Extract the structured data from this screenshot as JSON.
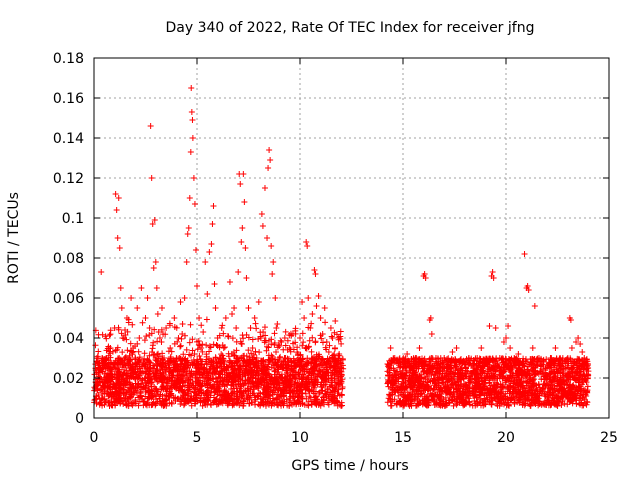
{
  "chart_data": {
    "type": "scatter",
    "title": "Day 340 of 2022, Rate Of TEC Index for receiver jfng",
    "xlabel": "GPS time / hours",
    "ylabel": "ROTI / TECUs",
    "xlim": [
      0,
      25
    ],
    "ylim": [
      0,
      0.18
    ],
    "xticks": [
      0,
      5,
      10,
      15,
      20,
      25
    ],
    "xtick_labels": [
      "0",
      "5",
      "10",
      "15",
      "20",
      "25"
    ],
    "yticks": [
      0,
      0.02,
      0.04,
      0.06,
      0.08,
      0.1,
      0.12,
      0.14,
      0.16,
      0.18
    ],
    "ytick_labels": [
      "0",
      "0.02",
      "0.04",
      "0.06",
      "0.08",
      "0.1",
      "0.12",
      "0.14",
      "0.16",
      "0.18"
    ],
    "grid": true,
    "marker": "+",
    "color": "#ff0000",
    "data_gap_hours": [
      12.1,
      14.2
    ],
    "series": [
      {
        "name": "ROTI",
        "points": [
          [
            0.1,
            0.016
          ],
          [
            0.2,
            0.022
          ],
          [
            0.3,
            0.014
          ],
          [
            0.35,
            0.073
          ],
          [
            0.4,
            0.025
          ],
          [
            0.5,
            0.018
          ],
          [
            0.6,
            0.03
          ],
          [
            0.7,
            0.012
          ],
          [
            0.8,
            0.035
          ],
          [
            0.9,
            0.02
          ],
          [
            1.0,
            0.045
          ],
          [
            1.05,
            0.112
          ],
          [
            1.1,
            0.104
          ],
          [
            1.15,
            0.09
          ],
          [
            1.2,
            0.11
          ],
          [
            1.25,
            0.085
          ],
          [
            1.3,
            0.065
          ],
          [
            1.35,
            0.055
          ],
          [
            1.4,
            0.04
          ],
          [
            1.5,
            0.03
          ],
          [
            1.6,
            0.05
          ],
          [
            1.7,
            0.025
          ],
          [
            1.8,
            0.06
          ],
          [
            1.9,
            0.035
          ],
          [
            2.0,
            0.02
          ],
          [
            2.1,
            0.055
          ],
          [
            2.2,
            0.04
          ],
          [
            2.3,
            0.065
          ],
          [
            2.4,
            0.028
          ],
          [
            2.5,
            0.05
          ],
          [
            2.6,
            0.06
          ],
          [
            2.7,
            0.045
          ],
          [
            2.75,
            0.146
          ],
          [
            2.8,
            0.12
          ],
          [
            2.85,
            0.097
          ],
          [
            2.9,
            0.075
          ],
          [
            2.95,
            0.099
          ],
          [
            3.0,
            0.078
          ],
          [
            3.05,
            0.065
          ],
          [
            3.1,
            0.052
          ],
          [
            3.2,
            0.04
          ],
          [
            3.3,
            0.055
          ],
          [
            3.4,
            0.03
          ],
          [
            3.5,
            0.045
          ],
          [
            3.6,
            0.025
          ],
          [
            3.7,
            0.035
          ],
          [
            3.8,
            0.02
          ],
          [
            3.9,
            0.05
          ],
          [
            4.0,
            0.03
          ],
          [
            4.1,
            0.04
          ],
          [
            4.2,
            0.058
          ],
          [
            4.3,
            0.047
          ],
          [
            4.4,
            0.06
          ],
          [
            4.5,
            0.078
          ],
          [
            4.55,
            0.092
          ],
          [
            4.6,
            0.095
          ],
          [
            4.65,
            0.11
          ],
          [
            4.7,
            0.133
          ],
          [
            4.72,
            0.165
          ],
          [
            4.75,
            0.153
          ],
          [
            4.78,
            0.149
          ],
          [
            4.8,
            0.14
          ],
          [
            4.85,
            0.12
          ],
          [
            4.9,
            0.107
          ],
          [
            4.95,
            0.084
          ],
          [
            5.0,
            0.066
          ],
          [
            5.1,
            0.05
          ],
          [
            5.2,
            0.035
          ],
          [
            5.3,
            0.043
          ],
          [
            5.4,
            0.078
          ],
          [
            5.5,
            0.062
          ],
          [
            5.6,
            0.083
          ],
          [
            5.7,
            0.087
          ],
          [
            5.75,
            0.097
          ],
          [
            5.8,
            0.106
          ],
          [
            5.85,
            0.067
          ],
          [
            5.9,
            0.055
          ],
          [
            6.0,
            0.04
          ],
          [
            6.1,
            0.03
          ],
          [
            6.2,
            0.045
          ],
          [
            6.3,
            0.035
          ],
          [
            6.4,
            0.05
          ],
          [
            6.5,
            0.041
          ],
          [
            6.6,
            0.068
          ],
          [
            6.7,
            0.052
          ],
          [
            6.8,
            0.055
          ],
          [
            6.9,
            0.045
          ],
          [
            7.0,
            0.073
          ],
          [
            7.05,
            0.122
          ],
          [
            7.1,
            0.117
          ],
          [
            7.15,
            0.088
          ],
          [
            7.2,
            0.095
          ],
          [
            7.25,
            0.122
          ],
          [
            7.3,
            0.108
          ],
          [
            7.35,
            0.085
          ],
          [
            7.4,
            0.07
          ],
          [
            7.5,
            0.055
          ],
          [
            7.6,
            0.045
          ],
          [
            7.7,
            0.035
          ],
          [
            7.8,
            0.05
          ],
          [
            7.9,
            0.03
          ],
          [
            8.0,
            0.058
          ],
          [
            8.1,
            0.04
          ],
          [
            8.15,
            0.102
          ],
          [
            8.2,
            0.096
          ],
          [
            8.3,
            0.115
          ],
          [
            8.4,
            0.09
          ],
          [
            8.45,
            0.125
          ],
          [
            8.5,
            0.134
          ],
          [
            8.55,
            0.129
          ],
          [
            8.6,
            0.086
          ],
          [
            8.65,
            0.072
          ],
          [
            8.7,
            0.078
          ],
          [
            8.8,
            0.06
          ],
          [
            8.9,
            0.047
          ],
          [
            9.0,
            0.03
          ],
          [
            9.1,
            0.038
          ],
          [
            9.2,
            0.025
          ],
          [
            9.3,
            0.03
          ],
          [
            9.4,
            0.022
          ],
          [
            9.5,
            0.035
          ],
          [
            9.6,
            0.018
          ],
          [
            9.7,
            0.028
          ],
          [
            9.8,
            0.02
          ],
          [
            9.9,
            0.032
          ],
          [
            10.0,
            0.04
          ],
          [
            10.1,
            0.058
          ],
          [
            10.2,
            0.05
          ],
          [
            10.3,
            0.088
          ],
          [
            10.35,
            0.086
          ],
          [
            10.4,
            0.06
          ],
          [
            10.5,
            0.045
          ],
          [
            10.6,
            0.052
          ],
          [
            10.7,
            0.074
          ],
          [
            10.75,
            0.072
          ],
          [
            10.8,
            0.056
          ],
          [
            10.9,
            0.061
          ],
          [
            11.0,
            0.05
          ],
          [
            11.1,
            0.042
          ],
          [
            11.2,
            0.055
          ],
          [
            11.3,
            0.038
          ],
          [
            11.4,
            0.033
          ],
          [
            11.5,
            0.045
          ],
          [
            11.6,
            0.03
          ],
          [
            11.7,
            0.035
          ],
          [
            11.8,
            0.028
          ],
          [
            11.9,
            0.032
          ],
          [
            12.0,
            0.025
          ],
          [
            14.4,
            0.035
          ],
          [
            14.6,
            0.03
          ],
          [
            14.8,
            0.028
          ],
          [
            15.0,
            0.022
          ],
          [
            15.2,
            0.032
          ],
          [
            15.4,
            0.025
          ],
          [
            15.6,
            0.03
          ],
          [
            15.8,
            0.035
          ],
          [
            16.0,
            0.071
          ],
          [
            16.05,
            0.072
          ],
          [
            16.1,
            0.07
          ],
          [
            16.3,
            0.049
          ],
          [
            16.35,
            0.05
          ],
          [
            16.4,
            0.042
          ],
          [
            16.6,
            0.03
          ],
          [
            16.8,
            0.025
          ],
          [
            17.0,
            0.03
          ],
          [
            17.2,
            0.028
          ],
          [
            17.4,
            0.033
          ],
          [
            17.6,
            0.035
          ],
          [
            17.8,
            0.028
          ],
          [
            18.0,
            0.022
          ],
          [
            18.2,
            0.03
          ],
          [
            18.4,
            0.025
          ],
          [
            18.6,
            0.03
          ],
          [
            18.8,
            0.035
          ],
          [
            19.0,
            0.028
          ],
          [
            19.2,
            0.046
          ],
          [
            19.3,
            0.071
          ],
          [
            19.35,
            0.073
          ],
          [
            19.4,
            0.07
          ],
          [
            19.5,
            0.045
          ],
          [
            19.7,
            0.03
          ],
          [
            19.9,
            0.038
          ],
          [
            20.0,
            0.04
          ],
          [
            20.1,
            0.046
          ],
          [
            20.2,
            0.035
          ],
          [
            20.4,
            0.03
          ],
          [
            20.6,
            0.032
          ],
          [
            20.8,
            0.028
          ],
          [
            20.9,
            0.082
          ],
          [
            21.0,
            0.065
          ],
          [
            21.05,
            0.066
          ],
          [
            21.1,
            0.064
          ],
          [
            21.3,
            0.035
          ],
          [
            21.4,
            0.056
          ],
          [
            21.6,
            0.03
          ],
          [
            21.8,
            0.028
          ],
          [
            22.0,
            0.025
          ],
          [
            22.2,
            0.03
          ],
          [
            22.4,
            0.035
          ],
          [
            22.6,
            0.028
          ],
          [
            22.8,
            0.025
          ],
          [
            23.0,
            0.03
          ],
          [
            23.1,
            0.05
          ],
          [
            23.15,
            0.049
          ],
          [
            23.2,
            0.035
          ],
          [
            23.4,
            0.038
          ],
          [
            23.5,
            0.04
          ],
          [
            23.6,
            0.037
          ],
          [
            23.7,
            0.033
          ],
          [
            23.8,
            0.03
          ],
          [
            23.9,
            0.025
          ]
        ]
      }
    ]
  }
}
